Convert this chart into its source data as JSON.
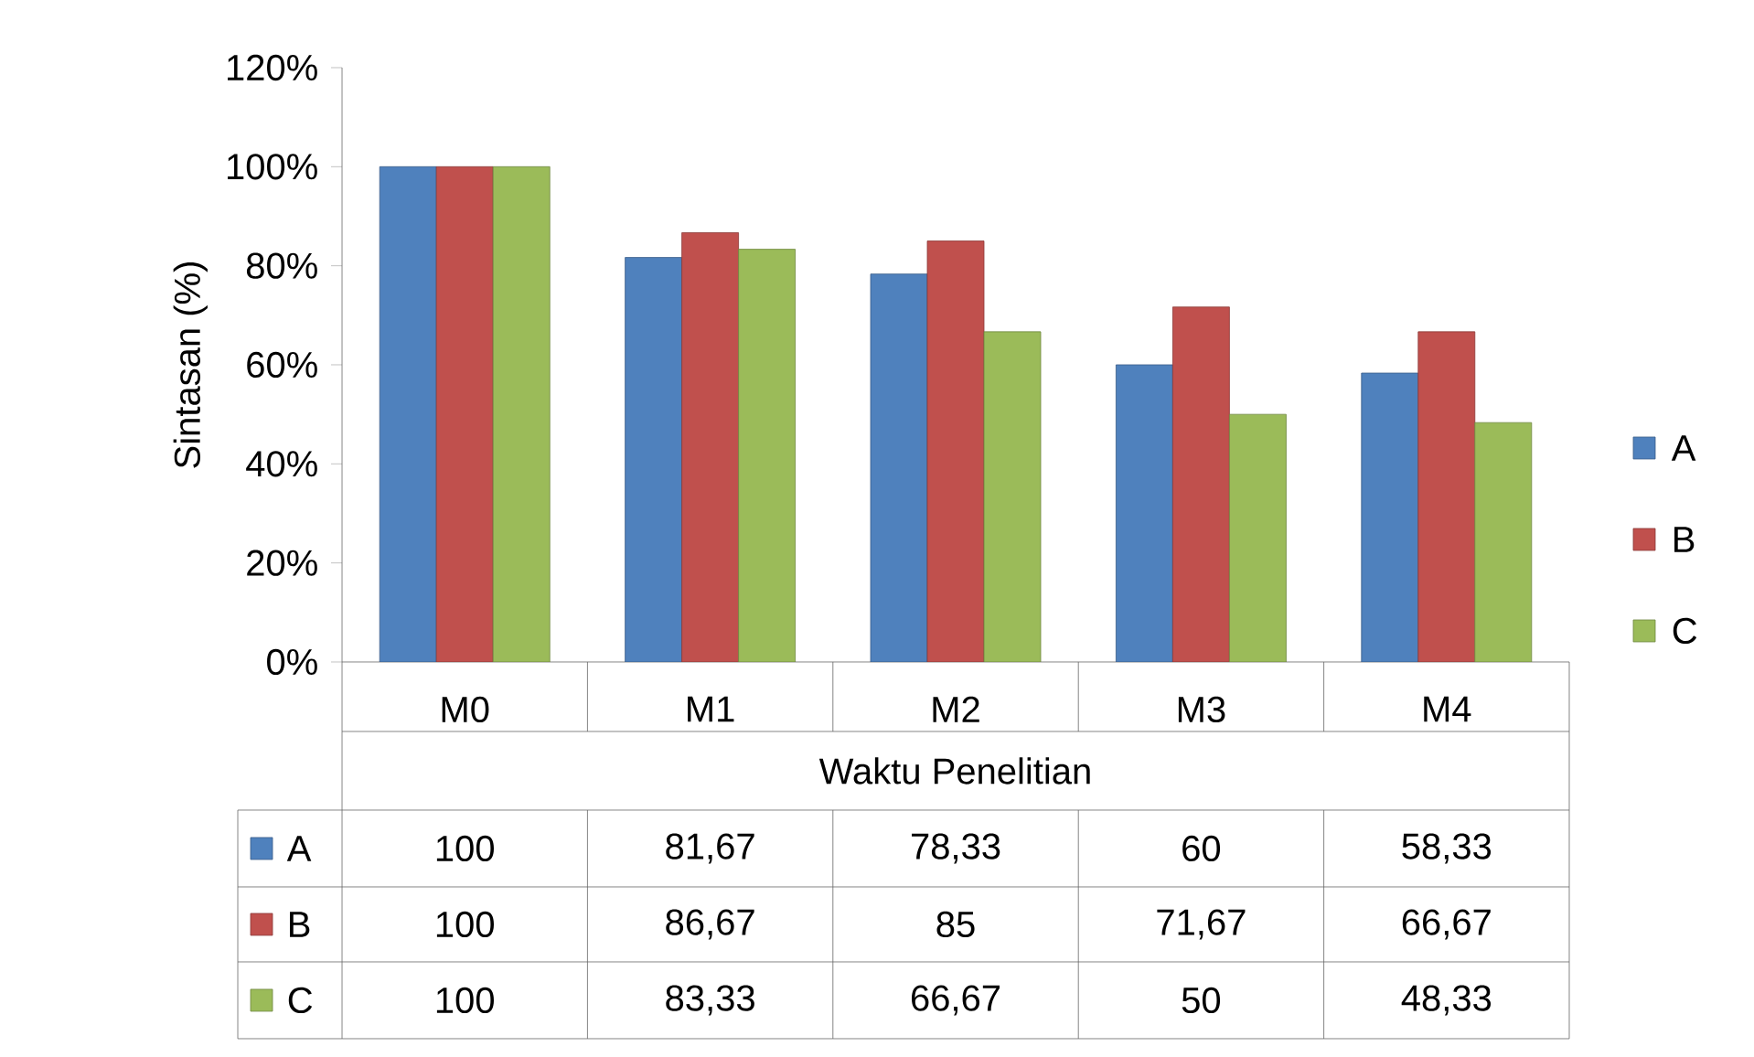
{
  "chart_data": {
    "type": "bar",
    "xlabel": "Waktu Penelitian",
    "ylabel": "Sintasan (%)",
    "categories": [
      "M0",
      "M1",
      "M2",
      "M3",
      "M4"
    ],
    "series": [
      {
        "name": "A",
        "color": "#4f81bd",
        "values": [
          100,
          81.67,
          78.33,
          60,
          58.33
        ],
        "value_labels": [
          "100",
          "81,67",
          "78,33",
          "60",
          "58,33"
        ]
      },
      {
        "name": "B",
        "color": "#c0504d",
        "values": [
          100,
          86.67,
          85,
          71.67,
          66.67
        ],
        "value_labels": [
          "100",
          "86,67",
          "85",
          "71,67",
          "66,67"
        ]
      },
      {
        "name": "C",
        "color": "#9bbb59",
        "values": [
          100,
          83.33,
          66.67,
          50,
          48.33
        ],
        "value_labels": [
          "100",
          "83,33",
          "66,67",
          "50",
          "48,33"
        ]
      }
    ],
    "ylim": [
      0,
      120
    ],
    "yticks": [
      {
        "value": 0,
        "label": "0%"
      },
      {
        "value": 20,
        "label": "20%"
      },
      {
        "value": 40,
        "label": "40%"
      },
      {
        "value": 60,
        "label": "60%"
      },
      {
        "value": 80,
        "label": "80%"
      },
      {
        "value": 100,
        "label": "100%"
      },
      {
        "value": 120,
        "label": "120%"
      }
    ],
    "grid": false,
    "legend": "right"
  }
}
